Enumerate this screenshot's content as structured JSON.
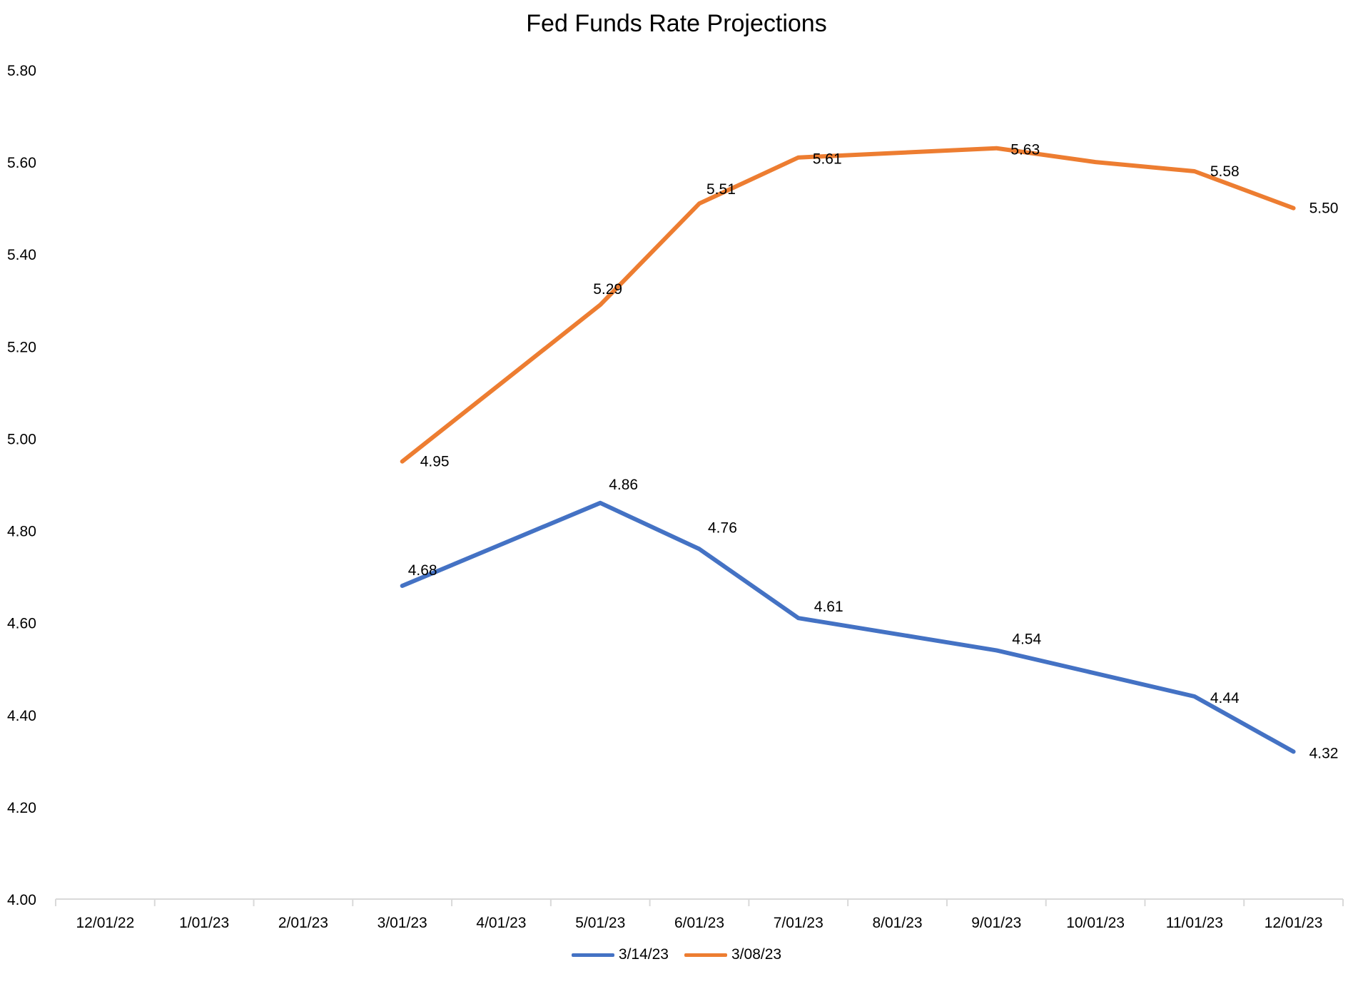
{
  "chart_data": {
    "type": "line",
    "title": "Fed Funds Rate Projections",
    "xlabel": "",
    "ylabel": "",
    "categories": [
      "12/01/22",
      "1/01/23",
      "2/01/23",
      "3/01/23",
      "4/01/23",
      "5/01/23",
      "6/01/23",
      "7/01/23",
      "8/01/23",
      "9/01/23",
      "10/01/23",
      "11/01/23",
      "12/01/23"
    ],
    "y_ticks": [
      "4.00",
      "4.20",
      "4.40",
      "4.60",
      "4.80",
      "5.00",
      "5.20",
      "5.40",
      "5.60",
      "5.80"
    ],
    "ylim": [
      4.0,
      5.8
    ],
    "grid": false,
    "legend_position": "bottom",
    "series": [
      {
        "name": "3/14/23",
        "color": "#4472C4",
        "values": [
          null,
          null,
          null,
          4.68,
          4.77,
          4.86,
          4.76,
          4.61,
          4.575,
          4.54,
          4.49,
          4.44,
          4.32
        ],
        "labels": {
          "3": "4.68",
          "5": "4.86",
          "6": "4.76",
          "7": "4.61",
          "9": "4.54",
          "11": "4.44",
          "12": "4.32"
        }
      },
      {
        "name": "3/08/23",
        "color": "#ED7D31",
        "values": [
          null,
          null,
          null,
          4.95,
          5.12,
          5.29,
          5.51,
          5.61,
          5.62,
          5.63,
          5.6,
          5.58,
          5.5
        ],
        "labels": {
          "3": "4.95",
          "5": "5.29",
          "6": "5.51",
          "7": "5.61",
          "9": "5.63",
          "11": "5.58",
          "12": "5.50"
        }
      }
    ]
  }
}
